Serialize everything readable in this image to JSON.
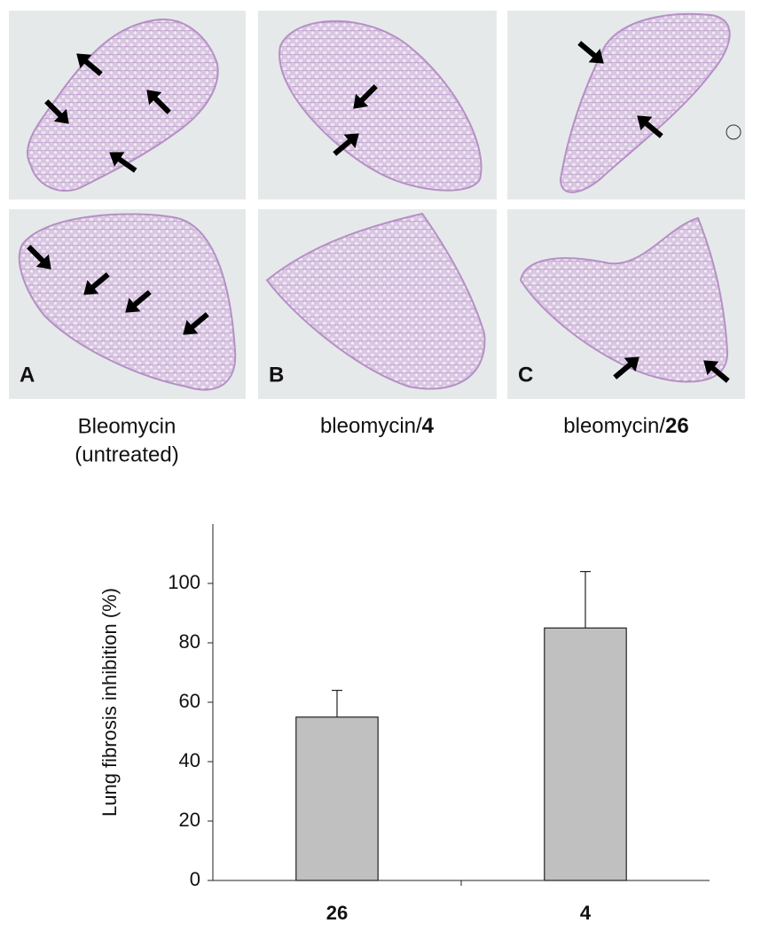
{
  "panels": [
    {
      "label": "A",
      "caption_lines": [
        "Bleomycin",
        "(untreated)"
      ]
    },
    {
      "label": "B",
      "caption_prefix": "bleomycin/",
      "caption_bold": "4"
    },
    {
      "label": "C",
      "caption_prefix": "bleomycin/",
      "caption_bold": "26"
    }
  ],
  "chart_data": {
    "type": "bar",
    "y_label": "Lung fibrosis inhibition (%)",
    "categories": [
      "26",
      "4"
    ],
    "values": [
      55,
      85
    ],
    "errors": [
      9,
      19
    ],
    "color": "#c0c0c0",
    "ylim": [
      0,
      120
    ],
    "yticks": [
      0,
      20,
      40,
      60,
      80,
      100
    ],
    "grid": false
  }
}
